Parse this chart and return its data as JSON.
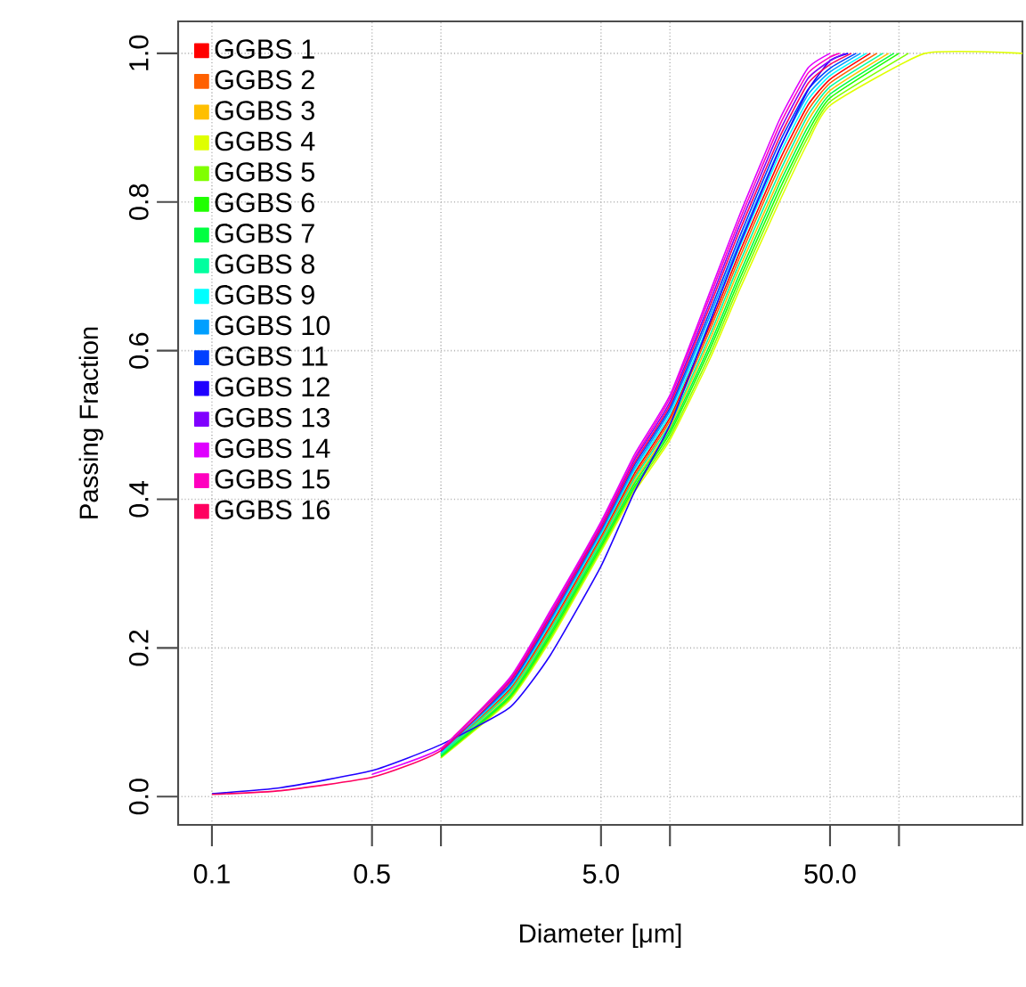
{
  "chart_data": {
    "type": "line",
    "xlabel": "Diameter [μm]",
    "ylabel": "Passing Fraction",
    "log": "x",
    "xlim": [
      0.0712,
      346
    ],
    "ylim": [
      -0.038,
      1.043
    ],
    "xticks": [
      0.1,
      0.5,
      {
        "value": 1,
        "label": null
      },
      {
        "value": 5,
        "label": "5.0"
      },
      {
        "value": 10,
        "label": null
      },
      {
        "value": 50,
        "label": "50.0"
      },
      {
        "value": 100,
        "label": null
      }
    ],
    "yticks": [
      {
        "value": 0,
        "label": "0.0"
      },
      0.2,
      0.4,
      0.6,
      0.8,
      {
        "value": 1,
        "label": "1.0"
      }
    ],
    "grid": true,
    "legend": "top left",
    "series": [
      {
        "name": "GGBS 1",
        "color": "#ff0000",
        "x": [
          1,
          2,
          3,
          5,
          7,
          10,
          15,
          20,
          30,
          40,
          50,
          75
        ],
        "values": [
          0.058,
          0.145,
          0.23,
          0.35,
          0.435,
          0.51,
          0.635,
          0.73,
          0.855,
          0.93,
          0.965,
          1.0
        ]
      },
      {
        "name": "GGBS 2",
        "color": "#ff6000",
        "x": [
          1,
          2,
          3,
          5,
          7,
          10,
          15,
          20,
          30,
          40,
          50,
          80
        ],
        "values": [
          0.058,
          0.143,
          0.227,
          0.347,
          0.431,
          0.506,
          0.629,
          0.723,
          0.847,
          0.923,
          0.96,
          1.0
        ]
      },
      {
        "name": "GGBS 3",
        "color": "#ffbf00",
        "x": [
          1,
          2,
          3,
          5,
          7,
          10,
          15,
          20,
          30,
          40,
          50,
          90
        ],
        "values": [
          0.056,
          0.139,
          0.221,
          0.341,
          0.424,
          0.497,
          0.616,
          0.709,
          0.831,
          0.909,
          0.95,
          1.0
        ]
      },
      {
        "name": "GGBS 4",
        "color": "#dfff00",
        "x": [
          1,
          2,
          3,
          5,
          7,
          10,
          15,
          20,
          30,
          40,
          50,
          130,
          346
        ],
        "values": [
          0.052,
          0.13,
          0.21,
          0.33,
          0.41,
          0.48,
          0.59,
          0.68,
          0.8,
          0.88,
          0.93,
          1.0,
          1.0
        ]
      },
      {
        "name": "GGBS 5",
        "color": "#80ff00",
        "x": [
          1,
          2,
          3,
          5,
          7,
          10,
          15,
          20,
          30,
          40,
          50,
          110
        ],
        "values": [
          0.053,
          0.132,
          0.213,
          0.333,
          0.414,
          0.484,
          0.596,
          0.687,
          0.808,
          0.887,
          0.935,
          1.0
        ]
      },
      {
        "name": "GGBS 6",
        "color": "#20ff00",
        "x": [
          1,
          2,
          3,
          5,
          7,
          10,
          15,
          20,
          30,
          40,
          50,
          100
        ],
        "values": [
          0.054,
          0.134,
          0.216,
          0.336,
          0.417,
          0.489,
          0.603,
          0.694,
          0.816,
          0.894,
          0.94,
          1.0
        ]
      },
      {
        "name": "GGBS 7",
        "color": "#00ff40",
        "x": [
          1,
          2,
          3,
          5,
          7,
          10,
          15,
          20,
          30,
          40,
          50,
          95
        ],
        "values": [
          0.055,
          0.136,
          0.219,
          0.339,
          0.421,
          0.493,
          0.609,
          0.701,
          0.824,
          0.901,
          0.945,
          1.0
        ]
      },
      {
        "name": "GGBS 8",
        "color": "#00ff9f",
        "x": [
          1,
          2,
          3,
          5,
          7,
          10,
          15,
          20,
          30,
          40,
          50,
          85
        ],
        "values": [
          0.057,
          0.141,
          0.224,
          0.344,
          0.428,
          0.501,
          0.622,
          0.716,
          0.839,
          0.916,
          0.955,
          1.0
        ]
      },
      {
        "name": "GGBS 9",
        "color": "#00ffff",
        "x": [
          1,
          2,
          3,
          5,
          7,
          10,
          15,
          20,
          30,
          40,
          50,
          72
        ],
        "values": [
          0.059,
          0.147,
          0.233,
          0.353,
          0.439,
          0.514,
          0.641,
          0.737,
          0.863,
          0.937,
          0.97,
          1.0
        ]
      },
      {
        "name": "GGBS 10",
        "color": "#009fff",
        "x": [
          1,
          2,
          3,
          5,
          7,
          10,
          15,
          20,
          30,
          40,
          50,
          68
        ],
        "values": [
          0.06,
          0.149,
          0.236,
          0.356,
          0.442,
          0.519,
          0.648,
          0.744,
          0.871,
          0.944,
          0.975,
          1.0
        ]
      },
      {
        "name": "GGBS 11",
        "color": "#0040ff",
        "x": [
          1,
          2,
          3,
          5,
          7,
          10,
          15,
          20,
          30,
          40,
          50,
          65
        ],
        "values": [
          0.061,
          0.151,
          0.239,
          0.359,
          0.446,
          0.523,
          0.654,
          0.751,
          0.879,
          0.951,
          0.98,
          1.0
        ]
      },
      {
        "name": "GGBS 12",
        "color": "#2000ff",
        "x": [
          0.1,
          0.2,
          0.5,
          1,
          2,
          3,
          5,
          7,
          10,
          15,
          20,
          30,
          40,
          50,
          60
        ],
        "values": [
          0.004,
          0.012,
          0.035,
          0.07,
          0.12,
          0.19,
          0.31,
          0.41,
          0.5,
          0.64,
          0.74,
          0.87,
          0.95,
          0.99,
          1.0
        ]
      },
      {
        "name": "GGBS 13",
        "color": "#8000ff",
        "x": [
          1,
          2,
          3,
          5,
          7,
          10,
          15,
          20,
          30,
          40,
          50,
          58
        ],
        "values": [
          0.063,
          0.156,
          0.244,
          0.364,
          0.453,
          0.531,
          0.667,
          0.766,
          0.894,
          0.966,
          0.99,
          1.0
        ]
      },
      {
        "name": "GGBS 14",
        "color": "#df00ff",
        "x": [
          0.5,
          1,
          2,
          3,
          5,
          7,
          10,
          15,
          20,
          30,
          40,
          50
        ],
        "values": [
          0.03,
          0.065,
          0.16,
          0.25,
          0.37,
          0.46,
          0.54,
          0.68,
          0.78,
          0.91,
          0.98,
          1.0
        ]
      },
      {
        "name": "GGBS 15",
        "color": "#ff00bf",
        "x": [
          1,
          2,
          3,
          5,
          7,
          10,
          15,
          20,
          30,
          40,
          50,
          55
        ],
        "values": [
          0.064,
          0.158,
          0.247,
          0.367,
          0.456,
          0.536,
          0.674,
          0.773,
          0.902,
          0.973,
          0.995,
          1.0
        ]
      },
      {
        "name": "GGBS 16",
        "color": "#ff0060",
        "x": [
          0.1,
          0.2,
          0.5,
          1,
          2,
          3,
          5,
          7,
          10,
          15,
          20,
          30,
          40,
          50,
          62
        ],
        "values": [
          0.003,
          0.008,
          0.026,
          0.062,
          0.154,
          0.241,
          0.361,
          0.449,
          0.527,
          0.661,
          0.759,
          0.886,
          0.959,
          0.985,
          1.0
        ]
      }
    ]
  }
}
